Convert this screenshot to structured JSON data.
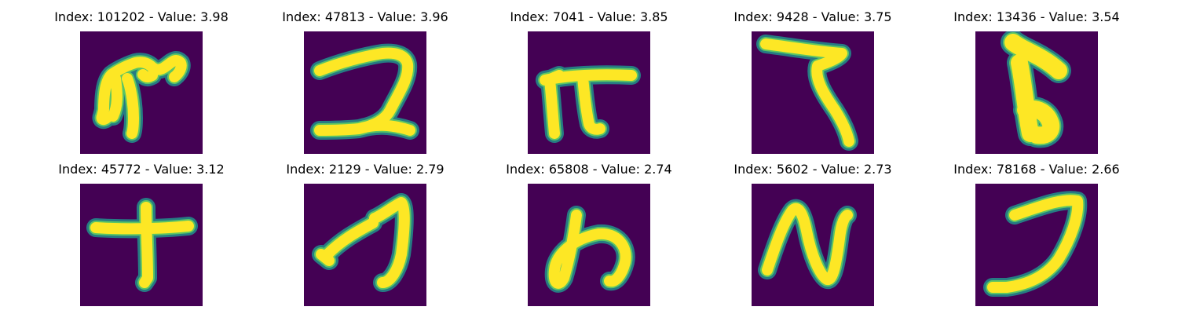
{
  "panels": [
    {
      "title": "Index: 101202 - Value: 3.98",
      "glyph": "glyph-101202"
    },
    {
      "title": "Index: 47813 - Value: 3.96",
      "glyph": "glyph-47813"
    },
    {
      "title": "Index: 7041 - Value: 3.85",
      "glyph": "glyph-7041"
    },
    {
      "title": "Index: 9428 - Value: 3.75",
      "glyph": "glyph-9428"
    },
    {
      "title": "Index: 13436 - Value: 3.54",
      "glyph": "glyph-13436"
    },
    {
      "title": "Index: 45772 - Value: 3.12",
      "glyph": "glyph-45772"
    },
    {
      "title": "Index: 2129 - Value: 2.79",
      "glyph": "glyph-2129"
    },
    {
      "title": "Index: 65808 - Value: 2.74",
      "glyph": "glyph-65808"
    },
    {
      "title": "Index: 5602 - Value: 2.73",
      "glyph": "glyph-5602"
    },
    {
      "title": "Index: 78168 - Value: 2.66",
      "glyph": "glyph-78168"
    }
  ],
  "colors": {
    "background": "#440154",
    "stroke_core": "#fde725",
    "stroke_mid": "#5ec962",
    "stroke_edge": "#21918c"
  }
}
